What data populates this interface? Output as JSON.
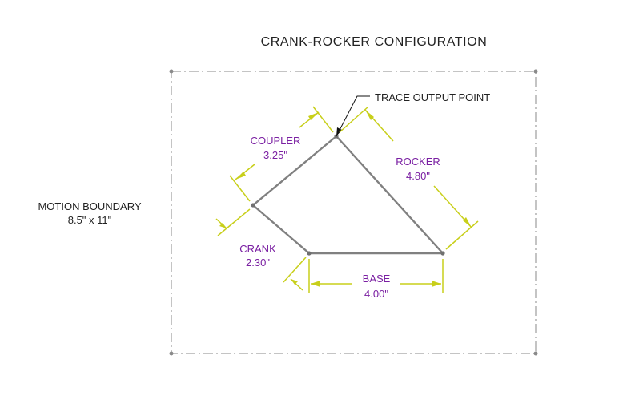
{
  "diagram": {
    "title": "CRANK-ROCKER CONFIGURATION",
    "boundary": {
      "label": "MOTION BOUNDARY",
      "size": "8.5\" x 11\""
    },
    "trace_label": "TRACE OUTPUT POINT",
    "links": {
      "coupler": {
        "name": "COUPLER",
        "length": "3.25\""
      },
      "rocker": {
        "name": "ROCKER",
        "length": "4.80\""
      },
      "crank": {
        "name": "CRANK",
        "length": "2.30\""
      },
      "base": {
        "name": "BASE",
        "length": "4.00\""
      }
    },
    "colors": {
      "dimension": "#c8cf1a",
      "label": "#7a1fa2",
      "link": "#808080",
      "boundary": "#8a8a8a"
    }
  }
}
